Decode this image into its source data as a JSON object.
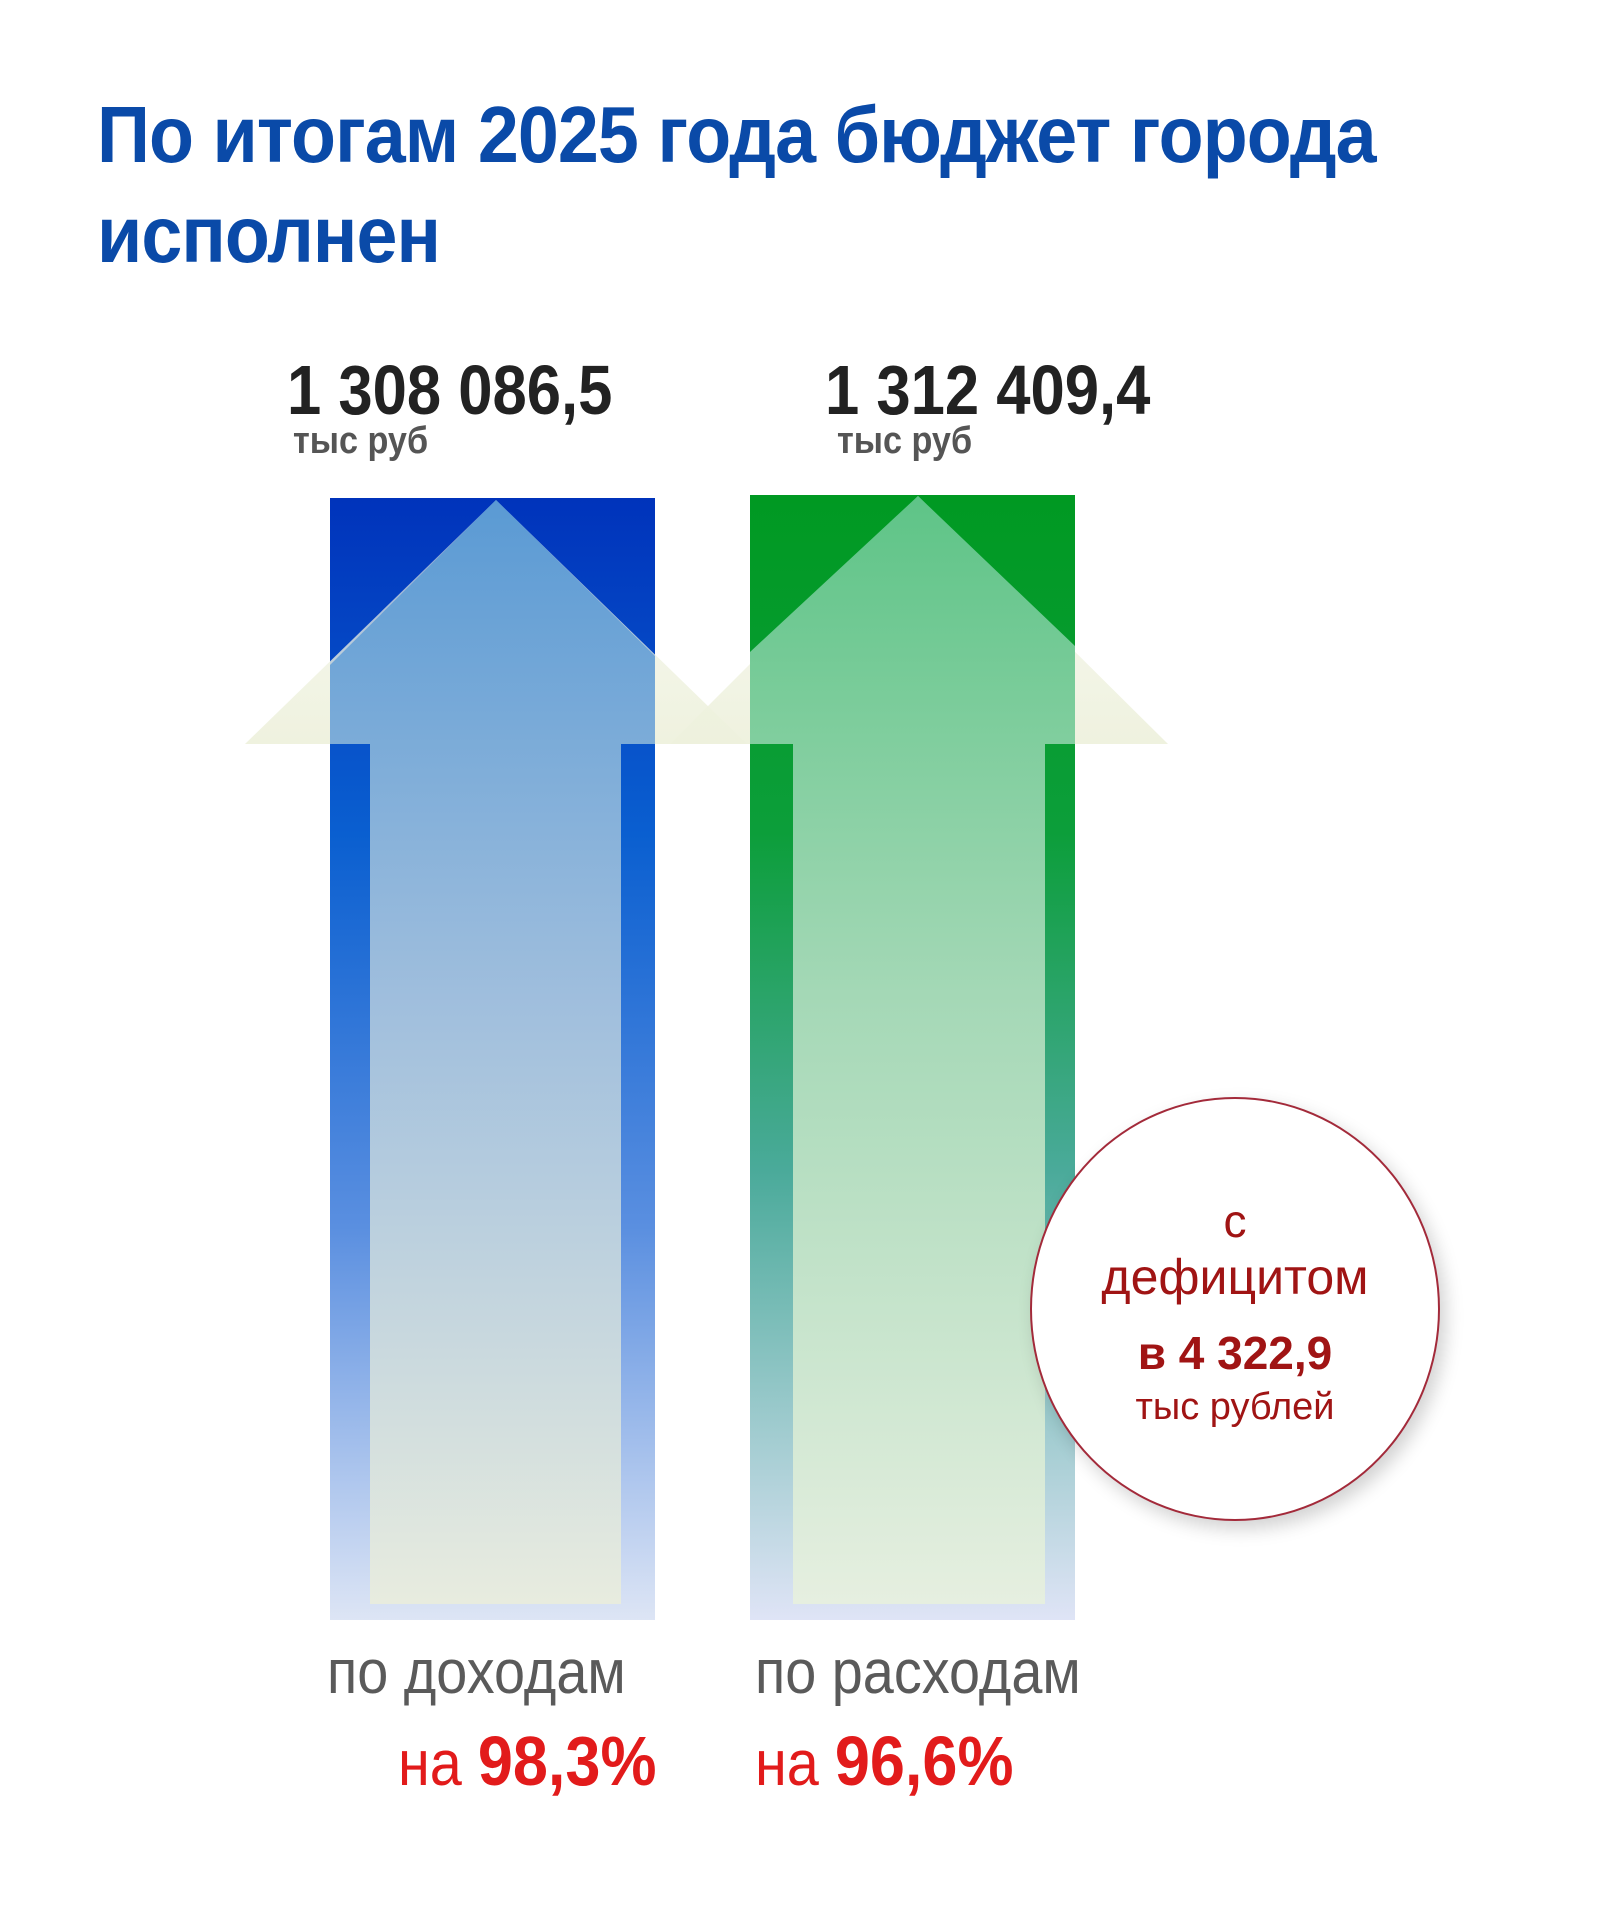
{
  "title": "По итогам 2025 года бюджет города исполнен",
  "income": {
    "amount": "1 308 086,5",
    "unit": "тыс руб",
    "caption": "по доходам",
    "percent_prefix": "на",
    "percent": "98,3%",
    "color_top": "#0033bb",
    "color_bottom": "#dde5f5"
  },
  "expenses": {
    "amount": "1 312 409,4",
    "unit": "тыс руб",
    "caption": "по расходам",
    "percent_prefix": "на",
    "percent": "96,6%",
    "color_top": "#009922",
    "color_bottom": "#dfe4f6"
  },
  "deficit": {
    "prefix": "с",
    "word": "дефицитом",
    "amount": "в 4 322,9",
    "unit": "тыс рублей",
    "border_color": "#a32a3a",
    "text_color": "#a01414"
  },
  "colors": {
    "title": "#0a4aa8",
    "percent": "#e21b1b",
    "caption": "#5a5a5a"
  }
}
